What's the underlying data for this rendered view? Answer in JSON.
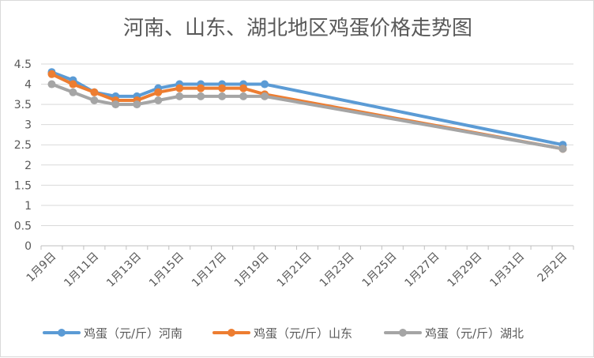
{
  "chart_data": {
    "type": "line",
    "title": "河南、山东、湖北地区鸡蛋价格走势图",
    "ylim": [
      0,
      4.5
    ],
    "yticks": [
      "0",
      "0.5",
      "1",
      "1.5",
      "2",
      "2.5",
      "3",
      "3.5",
      "4",
      "4.5"
    ],
    "xticks": [
      "1月9日",
      "1月11日",
      "1月13日",
      "1月15日",
      "1月17日",
      "1月19日",
      "1月21日",
      "1月23日",
      "1月25日",
      "1月27日",
      "1月29日",
      "1月31日",
      "2月2日"
    ],
    "grid": true,
    "legend_position": "bottom",
    "series": [
      {
        "name": "鸡蛋（元/斤）河南",
        "color": "#5B9BD5",
        "x": [
          "1月9日",
          "1月10日",
          "1月11日",
          "1月12日",
          "1月13日",
          "1月14日",
          "1月15日",
          "1月16日",
          "1月17日",
          "1月18日",
          "1月19日",
          "2月2日"
        ],
        "values": [
          4.3,
          4.1,
          3.8,
          3.7,
          3.7,
          3.9,
          4.0,
          4.0,
          4.0,
          4.0,
          4.0,
          2.5
        ]
      },
      {
        "name": "鸡蛋（元/斤）山东",
        "color": "#ED7D31",
        "x": [
          "1月9日",
          "1月10日",
          "1月11日",
          "1月12日",
          "1月13日",
          "1月14日",
          "1月15日",
          "1月16日",
          "1月17日",
          "1月18日",
          "1月19日",
          "2月2日"
        ],
        "values": [
          4.25,
          4.0,
          3.8,
          3.6,
          3.6,
          3.8,
          3.9,
          3.9,
          3.9,
          3.9,
          3.75,
          2.4
        ]
      },
      {
        "name": "鸡蛋（元/斤）湖北",
        "color": "#A5A5A5",
        "x": [
          "1月9日",
          "1月10日",
          "1月11日",
          "1月12日",
          "1月13日",
          "1月14日",
          "1月15日",
          "1月16日",
          "1月17日",
          "1月18日",
          "1月19日",
          "2月2日"
        ],
        "values": [
          4.0,
          3.8,
          3.6,
          3.5,
          3.5,
          3.6,
          3.7,
          3.7,
          3.7,
          3.7,
          3.7,
          2.4
        ]
      }
    ]
  }
}
